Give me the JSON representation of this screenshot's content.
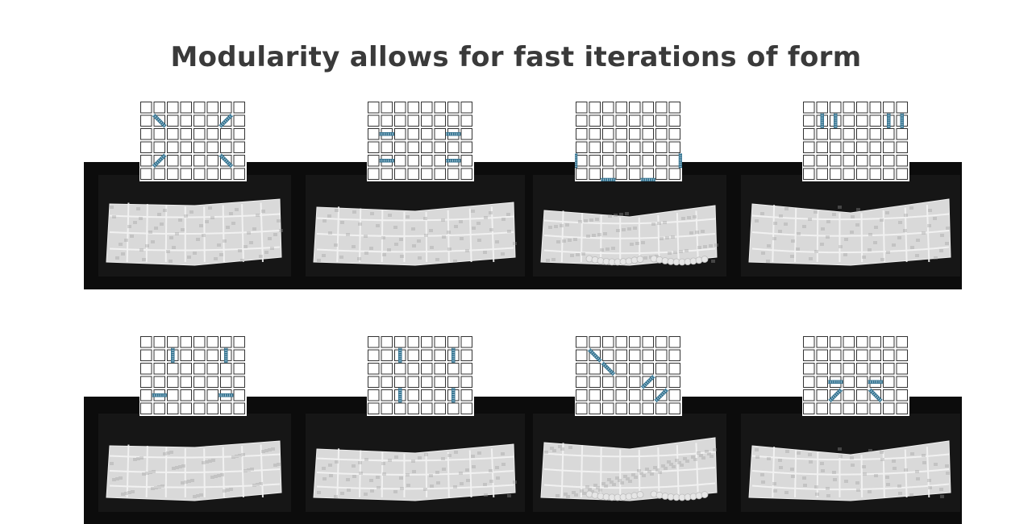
{
  "slide": {
    "title": "Modularity allows for fast iterations of form"
  },
  "colors": {
    "title": "#3a3a3a",
    "actuator": "#2d6e8c",
    "grid_line": "#333333",
    "fabric": "#d9d9d9",
    "background_band": "#0c0c0c"
  },
  "variants": [
    {
      "id": "r1c1",
      "actuators": [
        {
          "col": 1,
          "row": 1,
          "dir": "diag-r"
        },
        {
          "col": 6,
          "row": 1,
          "dir": "diag-l"
        },
        {
          "col": 1,
          "row": 4,
          "dir": "diag-l"
        },
        {
          "col": 6,
          "row": 4,
          "dir": "diag-r"
        }
      ]
    },
    {
      "id": "r1c2",
      "actuators": [
        {
          "col": 1,
          "row": 2,
          "dir": "h"
        },
        {
          "col": 6,
          "row": 2,
          "dir": "h"
        },
        {
          "col": 1,
          "row": 4,
          "dir": "h"
        },
        {
          "col": 6,
          "row": 4,
          "dir": "h"
        }
      ]
    },
    {
      "id": "r1c3",
      "actuators": [
        {
          "col": 0,
          "row": 4,
          "dir": "v-edge-l"
        },
        {
          "col": 7,
          "row": 4,
          "dir": "v-edge-r"
        },
        {
          "col": 2,
          "row": 5,
          "dir": "h-edge-b"
        },
        {
          "col": 5,
          "row": 5,
          "dir": "h-edge-b"
        }
      ]
    },
    {
      "id": "r1c4",
      "actuators": [
        {
          "col": 1,
          "row": 1,
          "dir": "v"
        },
        {
          "col": 2,
          "row": 1,
          "dir": "v"
        },
        {
          "col": 6,
          "row": 1,
          "dir": "v"
        },
        {
          "col": 7,
          "row": 1,
          "dir": "v"
        }
      ]
    },
    {
      "id": "r2c1",
      "actuators": [
        {
          "col": 2,
          "row": 1,
          "dir": "v"
        },
        {
          "col": 6,
          "row": 1,
          "dir": "v"
        },
        {
          "col": 1,
          "row": 4,
          "dir": "h"
        },
        {
          "col": 6,
          "row": 4,
          "dir": "h"
        }
      ]
    },
    {
      "id": "r2c2",
      "actuators": [
        {
          "col": 2,
          "row": 1,
          "dir": "v"
        },
        {
          "col": 6,
          "row": 1,
          "dir": "v"
        },
        {
          "col": 2,
          "row": 4,
          "dir": "v"
        },
        {
          "col": 6,
          "row": 4,
          "dir": "v"
        }
      ]
    },
    {
      "id": "r2c3",
      "actuators": [
        {
          "col": 1,
          "row": 1,
          "dir": "diag-r"
        },
        {
          "col": 2,
          "row": 2,
          "dir": "diag-r"
        },
        {
          "col": 5,
          "row": 3,
          "dir": "diag-l"
        },
        {
          "col": 6,
          "row": 4,
          "dir": "diag-l"
        }
      ]
    },
    {
      "id": "r2c4",
      "actuators": [
        {
          "col": 2,
          "row": 3,
          "dir": "h"
        },
        {
          "col": 5,
          "row": 3,
          "dir": "h"
        },
        {
          "col": 2,
          "row": 4,
          "dir": "diag-l"
        },
        {
          "col": 5,
          "row": 4,
          "dir": "diag-r"
        }
      ]
    }
  ]
}
